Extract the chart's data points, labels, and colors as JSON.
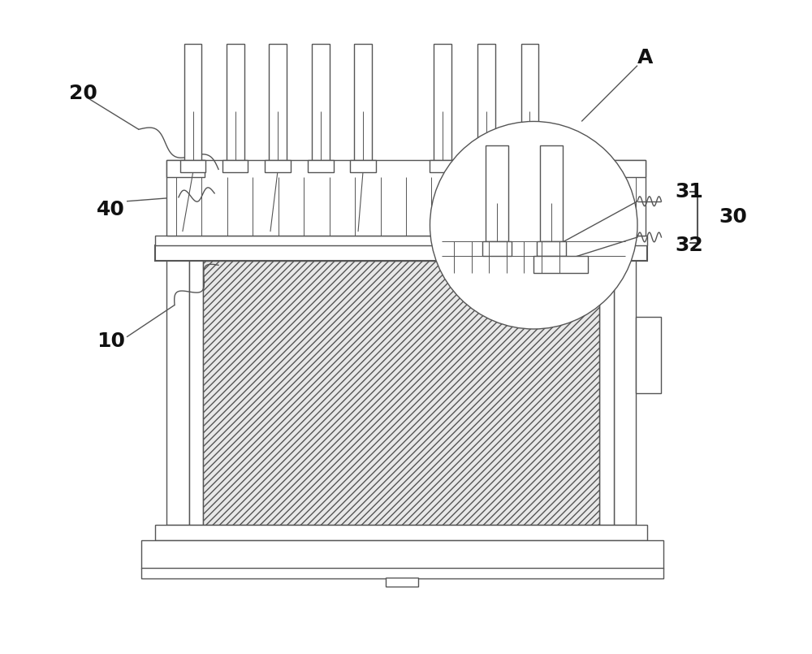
{
  "bg_color": "#ffffff",
  "line_color": "#555555",
  "fig_width": 10.0,
  "fig_height": 8.05,
  "dpi": 100
}
